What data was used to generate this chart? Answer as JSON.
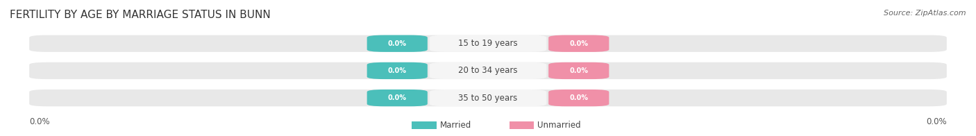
{
  "title": "FERTILITY BY AGE BY MARRIAGE STATUS IN BUNN",
  "source": "Source: ZipAtlas.com",
  "categories": [
    "15 to 19 years",
    "20 to 34 years",
    "35 to 50 years"
  ],
  "married_values": [
    0.0,
    0.0,
    0.0
  ],
  "unmarried_values": [
    0.0,
    0.0,
    0.0
  ],
  "married_color": "#4BBFBA",
  "unmarried_color": "#F090A8",
  "bar_bg_color": "#E8E8E8",
  "title_fontsize": 11,
  "source_fontsize": 8,
  "tick_label": "0.0%",
  "background_color": "#ffffff",
  "title_color": "#333333",
  "label_text_color": "#ffffff",
  "category_text_color": "#444444",
  "center_pill_color": "#f5f5f5"
}
